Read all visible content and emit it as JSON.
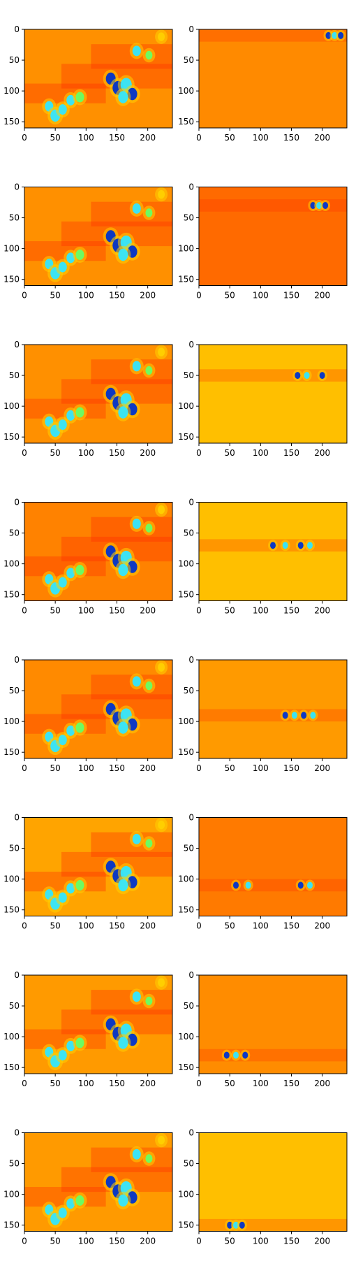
{
  "figure": {
    "grid": {
      "rows": 8,
      "cols": 2
    }
  },
  "colors": {
    "red": "#ff2a00",
    "orange_red": "#ff5a00",
    "orange": "#ff8c00",
    "yellow": "#ffd000",
    "blue": "#0033cc",
    "cyan": "#33e6ff",
    "green": "#66ff66"
  },
  "chart_data": [
    {
      "type": "heatmap",
      "row": 1,
      "col": 1,
      "panel": "left",
      "focus_y": null,
      "xticks": [
        0,
        50,
        100,
        150,
        200
      ],
      "yticks": [
        0,
        50,
        100,
        150
      ],
      "xlim": [
        0,
        240
      ],
      "ylim": [
        0,
        160
      ],
      "base_color": "#ff9000"
    },
    {
      "type": "heatmap",
      "row": 1,
      "col": 2,
      "panel": "right",
      "focus_y": 10,
      "xticks": [
        0,
        50,
        100,
        150,
        200
      ],
      "yticks": [
        0,
        50,
        100,
        150
      ],
      "xlim": [
        0,
        240
      ],
      "ylim": [
        0,
        160
      ],
      "base_color": "#ff8a00"
    },
    {
      "type": "heatmap",
      "row": 2,
      "col": 1,
      "panel": "left",
      "focus_y": null,
      "xticks": [
        0,
        50,
        100,
        150,
        200
      ],
      "yticks": [
        0,
        50,
        100,
        150
      ],
      "xlim": [
        0,
        240
      ],
      "ylim": [
        0,
        160
      ],
      "base_color": "#ff9000"
    },
    {
      "type": "heatmap",
      "row": 2,
      "col": 2,
      "panel": "right",
      "focus_y": 30,
      "xticks": [
        0,
        50,
        100,
        150,
        200
      ],
      "yticks": [
        0,
        50,
        100,
        150
      ],
      "xlim": [
        0,
        240
      ],
      "ylim": [
        0,
        160
      ],
      "base_color": "#ff6a00"
    },
    {
      "type": "heatmap",
      "row": 3,
      "col": 1,
      "panel": "left",
      "focus_y": null,
      "xticks": [
        0,
        50,
        100,
        150,
        200
      ],
      "yticks": [
        0,
        50,
        100,
        150
      ],
      "xlim": [
        0,
        240
      ],
      "ylim": [
        0,
        160
      ],
      "base_color": "#ff9000"
    },
    {
      "type": "heatmap",
      "row": 3,
      "col": 2,
      "panel": "right",
      "focus_y": 50,
      "xticks": [
        0,
        50,
        100,
        150,
        200
      ],
      "yticks": [
        0,
        50,
        100,
        150
      ],
      "xlim": [
        0,
        240
      ],
      "ylim": [
        0,
        160
      ],
      "base_color": "#ffbf00"
    },
    {
      "type": "heatmap",
      "row": 4,
      "col": 1,
      "panel": "left",
      "focus_y": null,
      "xticks": [
        0,
        50,
        100,
        150,
        200
      ],
      "yticks": [
        0,
        50,
        100,
        150
      ],
      "xlim": [
        0,
        240
      ],
      "ylim": [
        0,
        160
      ],
      "base_color": "#ff8200"
    },
    {
      "type": "heatmap",
      "row": 4,
      "col": 2,
      "panel": "right",
      "focus_y": 70,
      "xticks": [
        0,
        50,
        100,
        150,
        200
      ],
      "yticks": [
        0,
        50,
        100,
        150
      ],
      "xlim": [
        0,
        240
      ],
      "ylim": [
        0,
        160
      ],
      "base_color": "#ffbf00"
    },
    {
      "type": "heatmap",
      "row": 5,
      "col": 1,
      "panel": "left",
      "focus_y": null,
      "xticks": [
        0,
        50,
        100,
        150,
        200
      ],
      "yticks": [
        0,
        50,
        100,
        150
      ],
      "xlim": [
        0,
        240
      ],
      "ylim": [
        0,
        160
      ],
      "base_color": "#ff8a00"
    },
    {
      "type": "heatmap",
      "row": 5,
      "col": 2,
      "panel": "right",
      "focus_y": 90,
      "xticks": [
        0,
        50,
        100,
        150,
        200
      ],
      "yticks": [
        0,
        50,
        100,
        150
      ],
      "xlim": [
        0,
        240
      ],
      "ylim": [
        0,
        160
      ],
      "base_color": "#ff9a00"
    },
    {
      "type": "heatmap",
      "row": 6,
      "col": 1,
      "panel": "left",
      "focus_y": null,
      "xticks": [
        0,
        50,
        100,
        150,
        200
      ],
      "yticks": [
        0,
        50,
        100,
        150
      ],
      "xlim": [
        0,
        240
      ],
      "ylim": [
        0,
        160
      ],
      "base_color": "#ffa400"
    },
    {
      "type": "heatmap",
      "row": 6,
      "col": 2,
      "panel": "right",
      "focus_y": 110,
      "xticks": [
        0,
        50,
        100,
        150,
        200
      ],
      "yticks": [
        0,
        50,
        100,
        150
      ],
      "xlim": [
        0,
        240
      ],
      "ylim": [
        0,
        160
      ],
      "base_color": "#ff7a00"
    },
    {
      "type": "heatmap",
      "row": 7,
      "col": 1,
      "panel": "left",
      "focus_y": null,
      "xticks": [
        0,
        50,
        100,
        150,
        200
      ],
      "yticks": [
        0,
        50,
        100,
        150
      ],
      "xlim": [
        0,
        240
      ],
      "ylim": [
        0,
        160
      ],
      "base_color": "#ff9a00"
    },
    {
      "type": "heatmap",
      "row": 7,
      "col": 2,
      "panel": "right",
      "focus_y": 130,
      "xticks": [
        0,
        50,
        100,
        150,
        200
      ],
      "yticks": [
        0,
        50,
        100,
        150
      ],
      "xlim": [
        0,
        240
      ],
      "ylim": [
        0,
        160
      ],
      "base_color": "#ff8c00"
    },
    {
      "type": "heatmap",
      "row": 8,
      "col": 1,
      "panel": "left",
      "focus_y": null,
      "xticks": [
        0,
        50,
        100,
        150,
        200
      ],
      "yticks": [
        0,
        50,
        100,
        150
      ],
      "xlim": [
        0,
        240
      ],
      "ylim": [
        0,
        160
      ],
      "base_color": "#ff9a00"
    },
    {
      "type": "heatmap",
      "row": 8,
      "col": 2,
      "panel": "right",
      "focus_y": 150,
      "xticks": [
        0,
        50,
        100,
        150,
        200
      ],
      "yticks": [
        0,
        50,
        100,
        150
      ],
      "xlim": [
        0,
        240
      ],
      "ylim": [
        0,
        160
      ],
      "base_color": "#ffbf00"
    }
  ]
}
